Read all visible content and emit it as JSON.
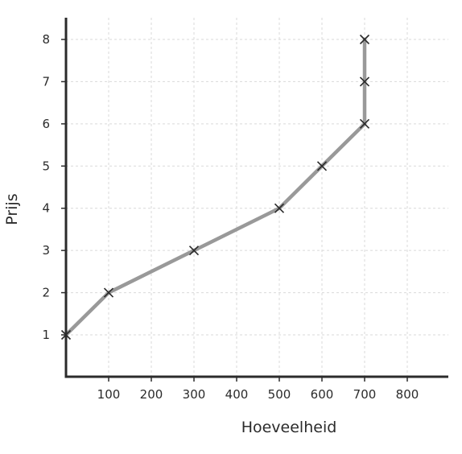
{
  "chart_data": {
    "type": "line",
    "title": "",
    "xlabel": "Hoeveelheid",
    "ylabel": "Prijs",
    "xlim": [
      0,
      900
    ],
    "ylim": [
      0,
      8.5
    ],
    "x_ticks": [
      "100",
      "200",
      "300",
      "400",
      "500",
      "600",
      "700",
      "800"
    ],
    "y_ticks": [
      "1",
      "2",
      "3",
      "4",
      "5",
      "6",
      "7",
      "8"
    ],
    "grid": true,
    "marker": "x",
    "colors": {
      "line": "#999999",
      "marker": "#2b2b2b",
      "axis": "#2b2b2b",
      "grid": "#d9d9d9"
    },
    "series": [
      {
        "x": [
          0,
          100,
          300,
          500,
          600,
          700,
          700,
          700
        ],
        "y": [
          1,
          2,
          3,
          4,
          5,
          6,
          7,
          8
        ]
      }
    ]
  }
}
